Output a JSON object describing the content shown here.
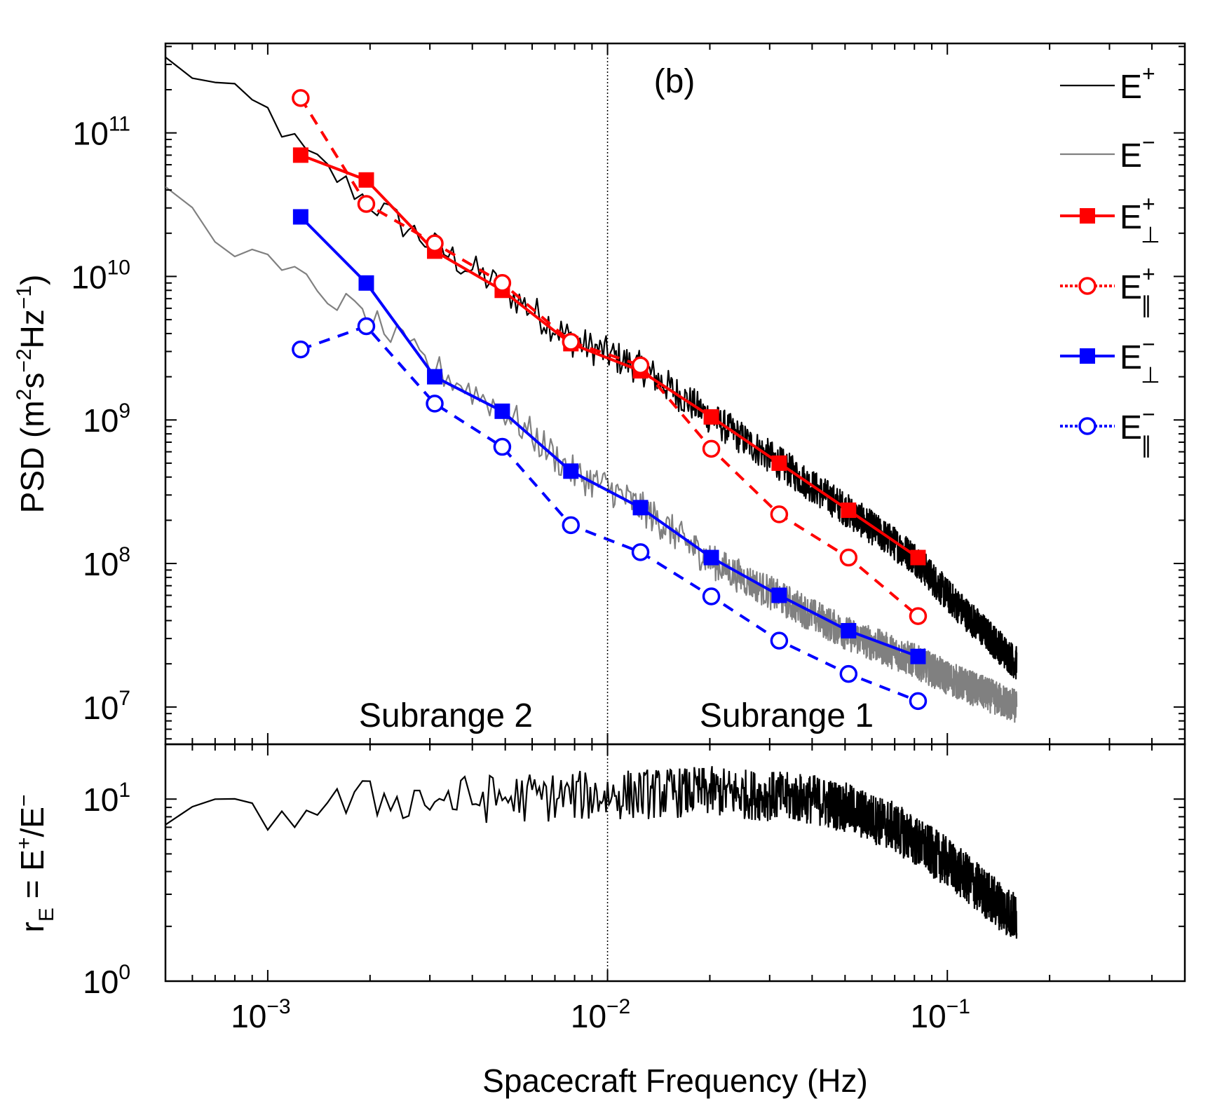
{
  "chart_data": {
    "type": "line",
    "panel_label": "(b)",
    "xlabel": "Spacecraft Frequency (Hz)",
    "xscale": "log",
    "xlim": [
      0.0005,
      0.5
    ],
    "x_ticks": [
      {
        "value": 0.001,
        "base": "10",
        "exp": "−3"
      },
      {
        "value": 0.01,
        "base": "10",
        "exp": "−2"
      },
      {
        "value": 0.1,
        "base": "10",
        "exp": "−1"
      }
    ],
    "divider_x": 0.01,
    "annotations": [
      {
        "text": "Subrange 2",
        "x": 0.0035,
        "y": 12500000.0
      },
      {
        "text": "Subrange 1",
        "x": 0.035,
        "y": 12500000.0
      }
    ],
    "top_panel": {
      "ylabel_parts": [
        "PSD (m",
        "2",
        "s",
        "−2",
        "Hz",
        "−1",
        ")"
      ],
      "yscale": "log",
      "ylim": [
        5500000.0,
        420000000000.0
      ],
      "y_ticks": [
        {
          "value": 10000000.0,
          "base": "10",
          "exp": "7"
        },
        {
          "value": 100000000.0,
          "base": "10",
          "exp": "8"
        },
        {
          "value": 1000000000.0,
          "base": "10",
          "exp": "9"
        },
        {
          "value": 10000000000.0,
          "base": "10",
          "exp": "10"
        },
        {
          "value": 100000000000.0,
          "base": "10",
          "exp": "11"
        }
      ],
      "series": [
        {
          "name": "E+",
          "legend_base": "E",
          "legend_sup": "+",
          "legend_sub": "",
          "color": "#000000",
          "style": "noisy",
          "noise": 0.12,
          "anchors": [
            [
              0.0005,
              320000000000.0
            ],
            [
              0.001,
              140000000000.0
            ],
            [
              0.00125,
              75000000000.0
            ],
            [
              0.002,
              33000000000.0
            ],
            [
              0.003,
              17000000000.0
            ],
            [
              0.005,
              8000000000.0
            ],
            [
              0.008,
              3500000000.0
            ],
            [
              0.01,
              2900000000.0
            ],
            [
              0.013,
              2200000000.0
            ],
            [
              0.02,
              1050000000.0
            ],
            [
              0.032,
              500000000.0
            ],
            [
              0.05,
              240000000.0
            ],
            [
              0.08,
              110000000.0
            ],
            [
              0.1,
              60000000.0
            ],
            [
              0.16,
              20000000.0
            ]
          ]
        },
        {
          "name": "E−",
          "legend_base": "E",
          "legend_sup": "−",
          "legend_sub": "",
          "color": "#808080",
          "style": "noisy",
          "noise": 0.12,
          "anchors": [
            [
              0.0005,
              45000000000.0
            ],
            [
              0.00065,
              22000000000.0
            ],
            [
              0.001,
              12000000000.0
            ],
            [
              0.00125,
              9500000000.0
            ],
            [
              0.002,
              5000000000.0
            ],
            [
              0.003,
              2400000000.0
            ],
            [
              0.005,
              1150000000.0
            ],
            [
              0.008,
              420000000.0
            ],
            [
              0.01,
              340000000.0
            ],
            [
              0.013,
              230000000.0
            ],
            [
              0.02,
              105000000.0
            ],
            [
              0.032,
              58000000.0
            ],
            [
              0.05,
              33000000.0
            ],
            [
              0.08,
              21000000.0
            ],
            [
              0.1,
              16000000.0
            ],
            [
              0.16,
              10000000.0
            ]
          ]
        },
        {
          "name": "E+⊥",
          "legend_base": "E",
          "legend_sup": "+",
          "legend_sub": "⊥",
          "color": "#ff0000",
          "style": "solid",
          "marker": "square",
          "x": [
            0.00125,
            0.00195,
            0.0031,
            0.0049,
            0.0078,
            0.0125,
            0.0202,
            0.032,
            0.0512,
            0.082
          ],
          "y": [
            70000000000.0,
            47000000000.0,
            15000000000.0,
            8000000000.0,
            3400000000.0,
            2200000000.0,
            1050000000.0,
            500000000.0,
            235000000.0,
            110000000.0
          ]
        },
        {
          "name": "E+∥",
          "legend_base": "E",
          "legend_sup": "+",
          "legend_sub": "∥",
          "color": "#ff0000",
          "style": "dashed",
          "marker": "circle",
          "x": [
            0.00125,
            0.00195,
            0.0031,
            0.0049,
            0.0078,
            0.0125,
            0.0202,
            0.032,
            0.0512,
            0.082
          ],
          "y": [
            175000000000.0,
            32000000000.0,
            17000000000.0,
            9000000000.0,
            3500000000.0,
            2400000000.0,
            630000000.0,
            220000000.0,
            110000000.0,
            43000000.0
          ]
        },
        {
          "name": "E−⊥",
          "legend_base": "E",
          "legend_sup": "−",
          "legend_sub": "⊥",
          "color": "#0000ff",
          "style": "solid",
          "marker": "square",
          "x": [
            0.00125,
            0.00195,
            0.0031,
            0.0049,
            0.0078,
            0.0125,
            0.0202,
            0.032,
            0.0512,
            0.082
          ],
          "y": [
            26000000000.0,
            9000000000.0,
            2000000000.0,
            1150000000.0,
            440000000.0,
            245000000.0,
            110000000.0,
            60000000.0,
            34000000.0,
            22500000.0
          ]
        },
        {
          "name": "E−∥",
          "legend_base": "E",
          "legend_sup": "−",
          "legend_sub": "∥",
          "color": "#0000ff",
          "style": "dashed",
          "marker": "circle",
          "x": [
            0.00125,
            0.00195,
            0.0031,
            0.0049,
            0.0078,
            0.0125,
            0.0202,
            0.032,
            0.0512,
            0.082
          ],
          "y": [
            3100000000.0,
            4500000000.0,
            1300000000.0,
            650000000.0,
            185000000.0,
            120000000.0,
            59000000.0,
            29000000.0,
            17000000.0,
            11000000.0
          ]
        }
      ]
    },
    "bottom_panel": {
      "ylabel_parts": [
        "r",
        "E",
        " = E",
        "+",
        "/E",
        "−"
      ],
      "yscale": "log",
      "ylim": [
        1,
        20
      ],
      "y_ticks": [
        {
          "value": 1,
          "base": "10",
          "exp": "0"
        },
        {
          "value": 10,
          "base": "10",
          "exp": "1"
        }
      ],
      "series": [
        {
          "name": "rE",
          "color": "#000000",
          "style": "noisy",
          "noise": 0.14,
          "anchors": [
            [
              0.0005,
              8.5
            ],
            [
              0.001,
              8
            ],
            [
              0.002,
              10
            ],
            [
              0.004,
              10
            ],
            [
              0.01,
              10.5
            ],
            [
              0.02,
              11
            ],
            [
              0.04,
              10
            ],
            [
              0.05,
              9
            ],
            [
              0.07,
              7
            ],
            [
              0.1,
              4.5
            ],
            [
              0.13,
              3
            ],
            [
              0.16,
              2.2
            ]
          ]
        }
      ]
    }
  }
}
